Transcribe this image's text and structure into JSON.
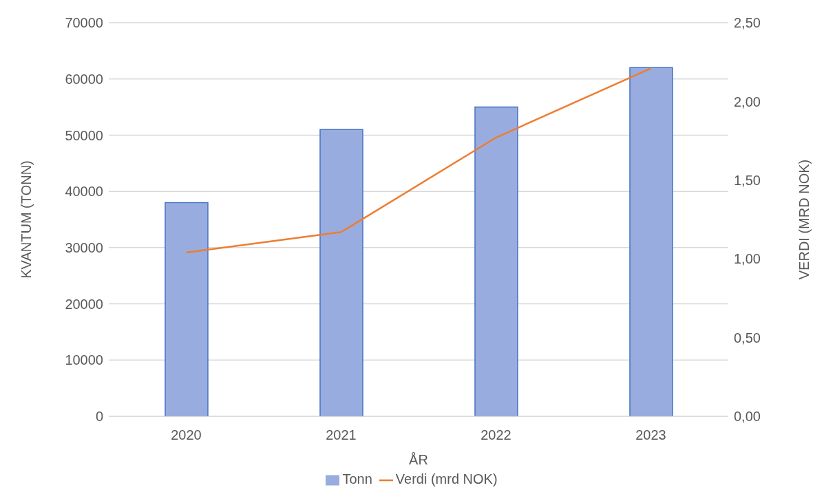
{
  "chart_data": {
    "type": "bar",
    "xlabel": "ÅR",
    "ylabel": "KVANTUM (TONN)",
    "y2label": "VERDI (MRD NOK)",
    "categories": [
      "2020",
      "2021",
      "2022",
      "2023"
    ],
    "series": [
      {
        "name": "Tonn",
        "color": "#99ace0",
        "values": [
          38000,
          51000,
          55000,
          62000
        ]
      },
      {
        "name": "Verdi (mrd NOK)",
        "type": "line",
        "axis": "y2",
        "color": "#ed7d31",
        "values": [
          1.04,
          1.17,
          1.77,
          2.21
        ]
      }
    ],
    "ylim": [
      0,
      70000
    ],
    "yticks": [
      0,
      10000,
      20000,
      30000,
      40000,
      50000,
      60000,
      70000
    ],
    "y2lim": [
      0,
      2.5
    ],
    "y2ticks": [
      {
        "value": 0,
        "label": "0,00"
      },
      {
        "value": 0.5,
        "label": "0,50"
      },
      {
        "value": 1,
        "label": "1,00"
      },
      {
        "value": 1.5,
        "label": "1,50"
      },
      {
        "value": 2,
        "label": "2,00"
      },
      {
        "value": 2.5,
        "label": "2,50"
      }
    ],
    "grid": "y",
    "legend": "bottom",
    "marker": "none"
  }
}
